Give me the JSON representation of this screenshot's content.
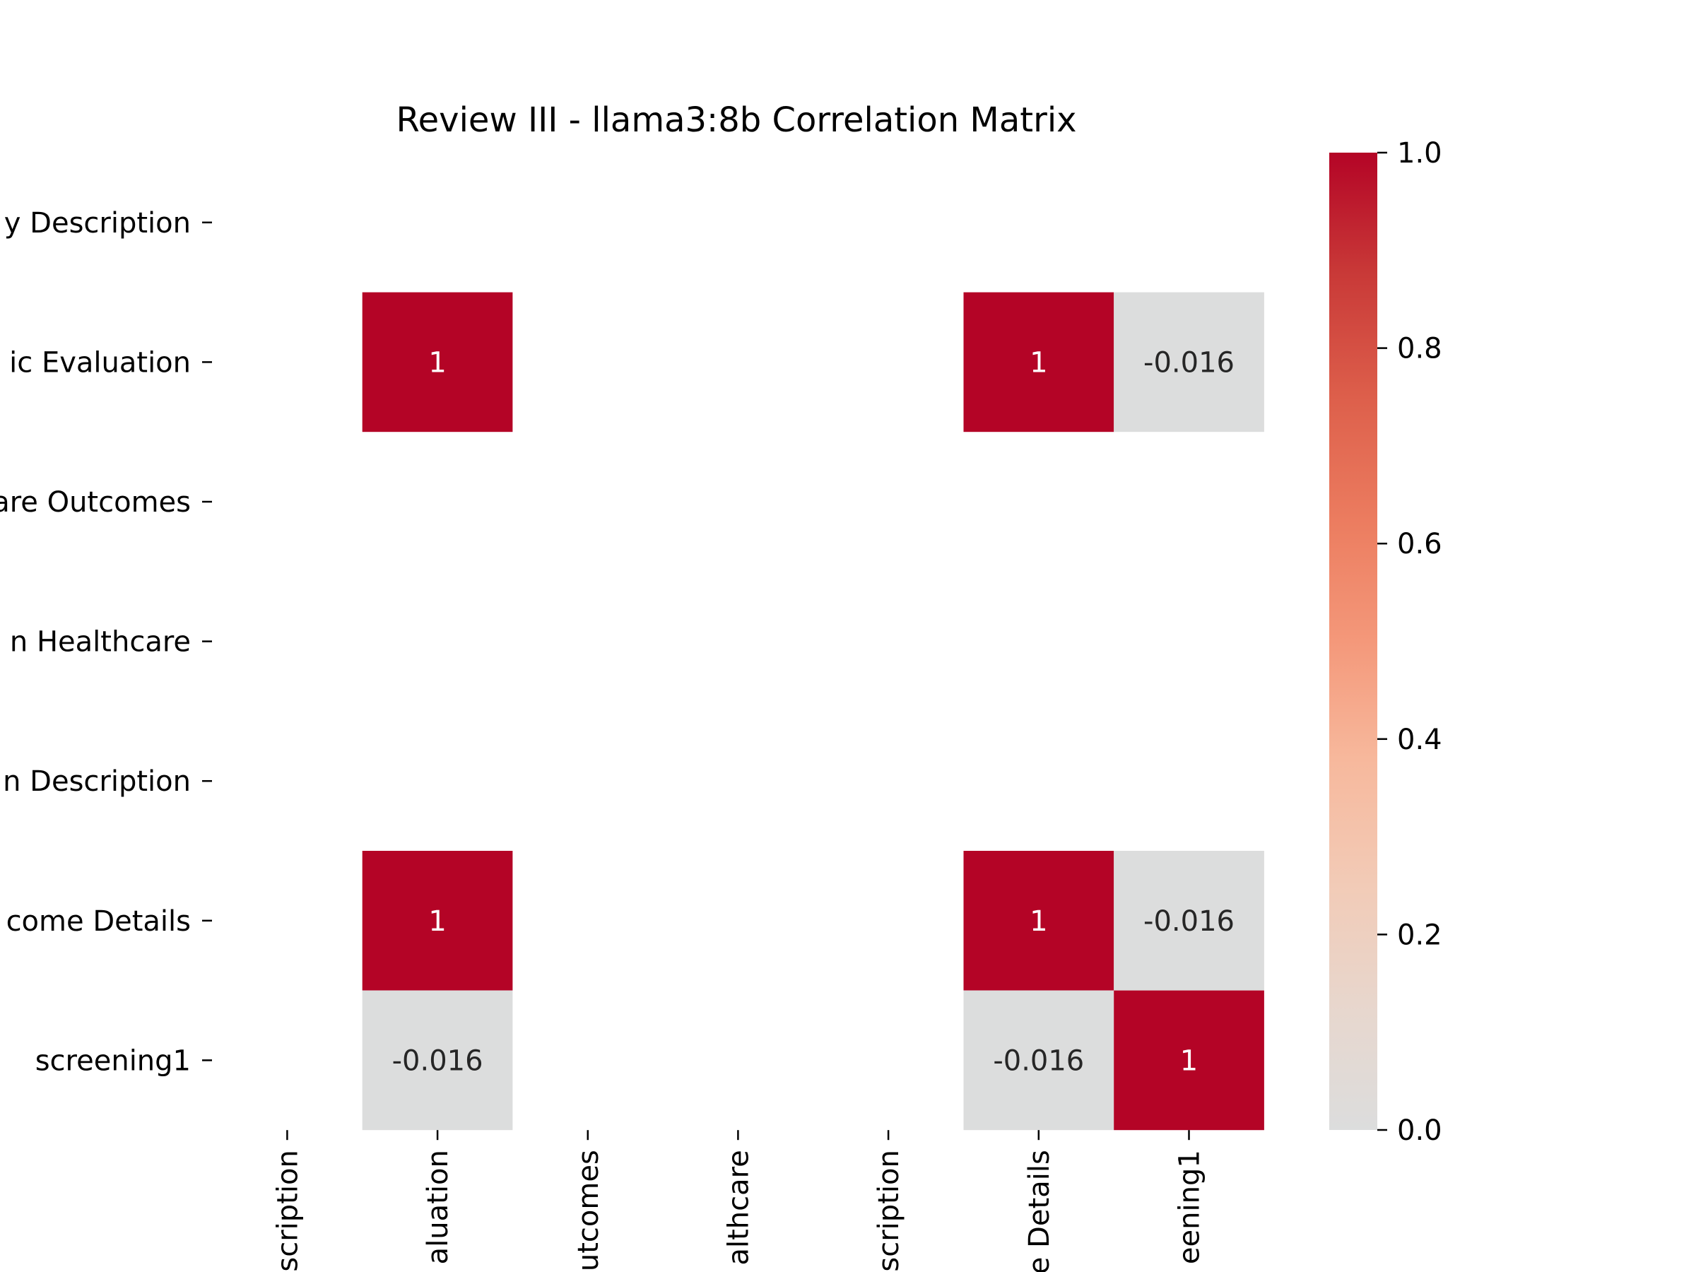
{
  "chart_data": {
    "type": "heatmap",
    "title": "Review III - llama3:8b Correlation Matrix",
    "row_labels": [
      "y Description",
      "ic Evaluation",
      "are Outcomes",
      "n Healthcare",
      "n Description",
      "come Details",
      "screening1"
    ],
    "col_labels": [
      "scription",
      "aluation",
      "utcomes",
      "althcare",
      "scription",
      "e Details",
      "eening1"
    ],
    "values": [
      [
        null,
        null,
        null,
        null,
        null,
        null,
        null
      ],
      [
        null,
        1,
        null,
        null,
        null,
        1,
        -0.016
      ],
      [
        null,
        null,
        null,
        null,
        null,
        null,
        null
      ],
      [
        null,
        null,
        null,
        null,
        null,
        null,
        null
      ],
      [
        null,
        null,
        null,
        null,
        null,
        null,
        null
      ],
      [
        null,
        1,
        null,
        null,
        null,
        1,
        -0.016
      ],
      [
        null,
        -0.016,
        null,
        null,
        null,
        -0.016,
        1
      ]
    ],
    "annotations": [
      [
        null,
        null,
        null,
        null,
        null,
        null,
        null
      ],
      [
        null,
        "1",
        null,
        null,
        null,
        "1",
        "-0.016"
      ],
      [
        null,
        null,
        null,
        null,
        null,
        null,
        null
      ],
      [
        null,
        null,
        null,
        null,
        null,
        null,
        null
      ],
      [
        null,
        null,
        null,
        null,
        null,
        null,
        null
      ],
      [
        null,
        "1",
        null,
        null,
        null,
        "1",
        "-0.016"
      ],
      [
        null,
        "-0.016",
        null,
        null,
        null,
        "-0.016",
        "1"
      ]
    ],
    "colorbar": {
      "range": [
        0,
        1
      ],
      "ticks": [
        "0.0",
        "0.2",
        "0.4",
        "0.6",
        "0.8",
        "1.0"
      ],
      "tick_values": [
        0,
        0.2,
        0.4,
        0.6,
        0.8,
        1.0
      ],
      "colormap": "coolwarm (upper half)",
      "low_color": "#dcdddd",
      "high_color": "#b40426"
    },
    "annotation_colors": {
      "on_dark": "#ffffff",
      "on_light": "#262626"
    }
  }
}
